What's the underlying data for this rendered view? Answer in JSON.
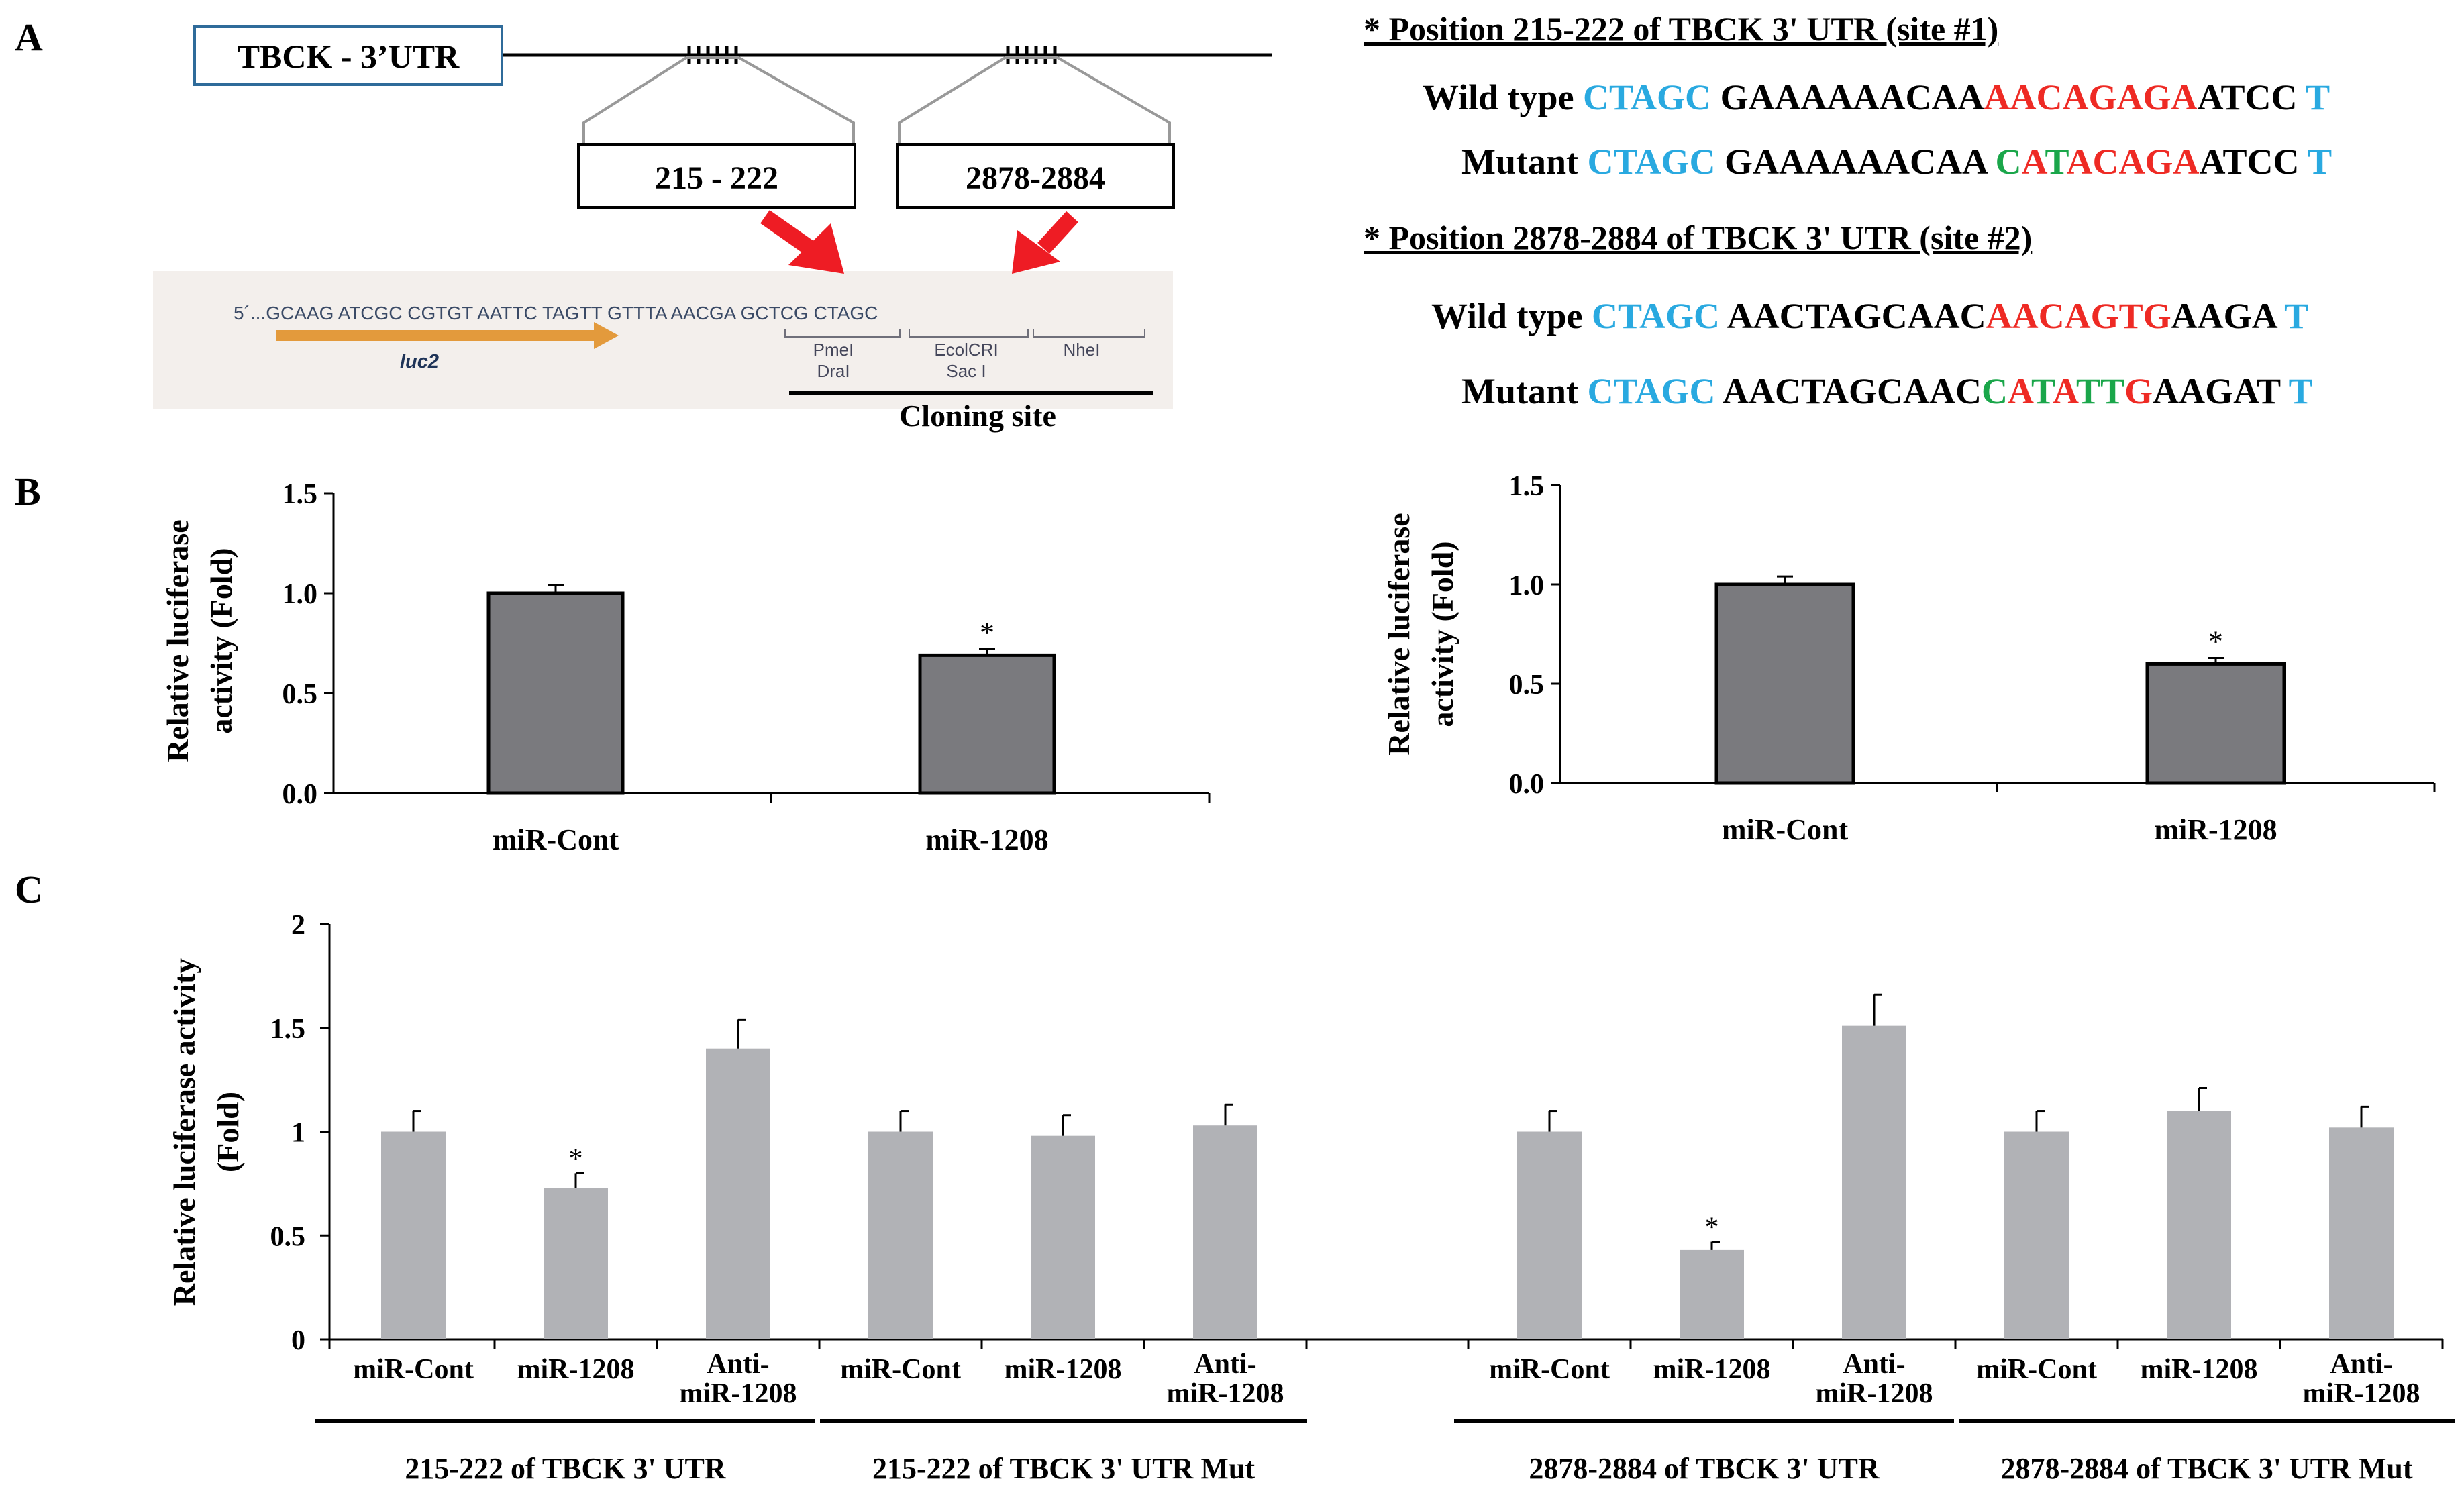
{
  "panel_labels": {
    "a": "A",
    "b": "B",
    "c": "C"
  },
  "panel_a": {
    "utr_label": "TBCK - 3’UTR",
    "site1_box": "215 - 222",
    "site2_box": "2878-2884",
    "vector": {
      "sequence": "5´...GCAAG ATCGC CGTGT AATTC TAGTT GTTTA AACGA GCTCG CTAGC",
      "gene": "luc2",
      "enzymes": {
        "pmei": "PmeI",
        "drai": "DraI",
        "ecolcri": "EcolCRI",
        "saci": "Sac I",
        "nhei": "NheI"
      },
      "cloning_site": "Cloning site"
    },
    "site1": {
      "header": "* Position 215-222 of TBCK 3' UTR (site #1)",
      "wt_label": "Wild type ",
      "wt_segments": [
        {
          "text": "CTAGC ",
          "color": "#29a9e0"
        },
        {
          "text": "GAAAAAACAA",
          "color": "#000000"
        },
        {
          "text": "AACAGAGA",
          "color": "#ee2a24"
        },
        {
          "text": "ATCC ",
          "color": "#000000"
        },
        {
          "text": "T",
          "color": "#29a9e0"
        }
      ],
      "mut_label": "Mutant ",
      "mut_segments": [
        {
          "text": "CTAGC ",
          "color": "#29a9e0"
        },
        {
          "text": "GAAAAAACAA ",
          "color": "#000000"
        },
        {
          "text": "C",
          "color": "#1aa64a"
        },
        {
          "text": "A",
          "color": "#ee2a24"
        },
        {
          "text": "T",
          "color": "#1aa64a"
        },
        {
          "text": "ACAGA",
          "color": "#ee2a24"
        },
        {
          "text": "ATCC ",
          "color": "#000000"
        },
        {
          "text": "T",
          "color": "#29a9e0"
        }
      ]
    },
    "site2": {
      "header": "* Position 2878-2884 of TBCK 3' UTR (site #2)",
      "wt_label": "Wild type ",
      "wt_segments": [
        {
          "text": "CTAGC ",
          "color": "#29a9e0"
        },
        {
          "text": "AACTAGCAAC",
          "color": "#000000"
        },
        {
          "text": "AACAGTG",
          "color": "#ee2a24"
        },
        {
          "text": "AAGA ",
          "color": "#000000"
        },
        {
          "text": "T",
          "color": "#29a9e0"
        }
      ],
      "mut_label": "Mutant ",
      "mut_segments": [
        {
          "text": "CTAGC ",
          "color": "#29a9e0"
        },
        {
          "text": "AACTAGCAAC",
          "color": "#000000"
        },
        {
          "text": "C",
          "color": "#1aa64a"
        },
        {
          "text": "A",
          "color": "#ee2a24"
        },
        {
          "text": "T",
          "color": "#1aa64a"
        },
        {
          "text": "A",
          "color": "#ee2a24"
        },
        {
          "text": "TT",
          "color": "#1aa64a"
        },
        {
          "text": "G",
          "color": "#ee2a24"
        },
        {
          "text": "AAGAT ",
          "color": "#000000"
        },
        {
          "text": "T",
          "color": "#29a9e0"
        }
      ]
    }
  },
  "chart_data": [
    {
      "id": "B-left",
      "type": "bar",
      "categories": [
        "miR-Cont",
        "miR-1208"
      ],
      "values": [
        1.0,
        0.69
      ],
      "errors": [
        0.04,
        0.03
      ],
      "significance": [
        "",
        "*"
      ],
      "ylabel_lines": [
        "Relative luciferase",
        "activity (Fold)"
      ],
      "ylim": [
        0,
        1.5
      ],
      "yticks": [
        "0.0",
        "0.5",
        "1.0",
        "1.5"
      ],
      "color": "#7a7a7e"
    },
    {
      "id": "B-right",
      "type": "bar",
      "categories": [
        "miR-Cont",
        "miR-1208"
      ],
      "values": [
        1.0,
        0.6
      ],
      "errors": [
        0.04,
        0.03
      ],
      "significance": [
        "",
        "*"
      ],
      "ylabel_lines": [
        "Relative luciferase",
        "activity (Fold)"
      ],
      "ylim": [
        0,
        1.5
      ],
      "yticks": [
        "0.0",
        "0.5",
        "1.0",
        "1.5"
      ],
      "color": "#7a7a7e"
    },
    {
      "id": "C",
      "type": "bar",
      "ylabel_lines": [
        "Relative luciferase activity",
        "(Fold)"
      ],
      "ylim": [
        0,
        2
      ],
      "yticks": [
        "0",
        "0.5",
        "1",
        "1.5",
        "2"
      ],
      "color": "#b1b2b6",
      "groups": [
        {
          "name": "215-222 of TBCK 3' UTR",
          "categories": [
            [
              "miR-Cont"
            ],
            [
              "miR-1208"
            ],
            [
              "Anti-",
              "miR-1208"
            ]
          ],
          "values": [
            1.0,
            0.73,
            1.4
          ],
          "errors": [
            0.1,
            0.07,
            0.14
          ],
          "significance": [
            "",
            "*",
            ""
          ]
        },
        {
          "name": "215-222 of TBCK 3' UTR Mut",
          "categories": [
            [
              "miR-Cont"
            ],
            [
              "miR-1208"
            ],
            [
              "Anti-",
              "miR-1208"
            ]
          ],
          "values": [
            1.0,
            0.98,
            1.03
          ],
          "errors": [
            0.1,
            0.1,
            0.1
          ],
          "significance": [
            "",
            "",
            ""
          ]
        },
        {
          "name": "2878-2884 of TBCK 3' UTR",
          "categories": [
            [
              "miR-Cont"
            ],
            [
              "miR-1208"
            ],
            [
              "Anti-",
              "miR-1208"
            ]
          ],
          "values": [
            1.0,
            0.43,
            1.51
          ],
          "errors": [
            0.1,
            0.04,
            0.15
          ],
          "significance": [
            "",
            "*",
            ""
          ]
        },
        {
          "name": "2878-2884 of TBCK 3' UTR Mut",
          "categories": [
            [
              "miR-Cont"
            ],
            [
              "miR-1208"
            ],
            [
              "Anti-",
              "miR-1208"
            ]
          ],
          "values": [
            1.0,
            1.1,
            1.02
          ],
          "errors": [
            0.1,
            0.11,
            0.1
          ],
          "significance": [
            "",
            "",
            ""
          ]
        }
      ]
    }
  ]
}
